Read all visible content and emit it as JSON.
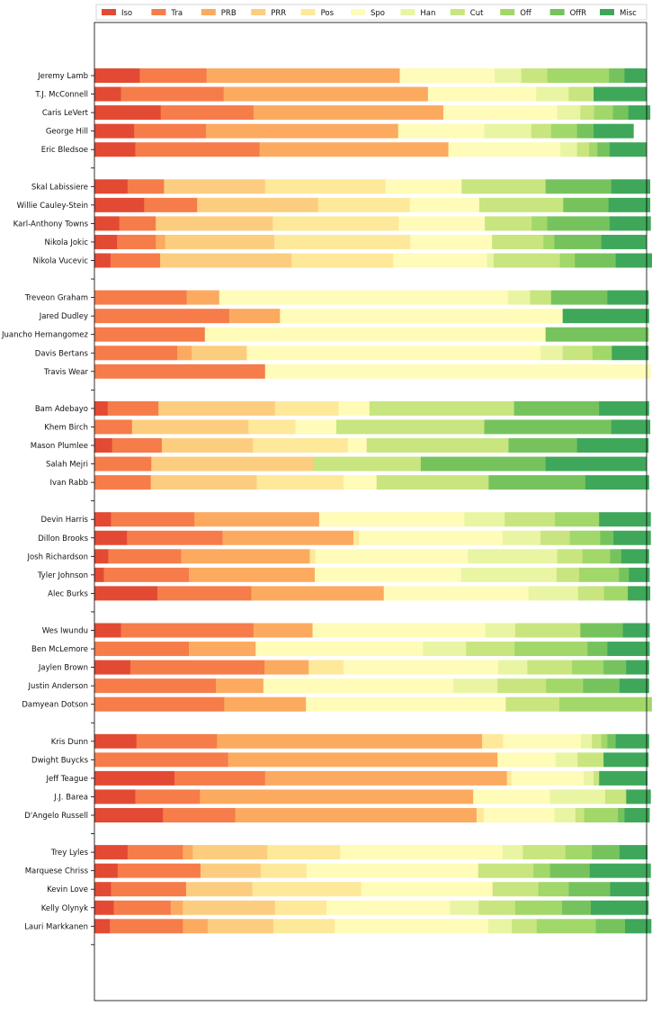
{
  "chart_data": {
    "type": "bar",
    "orientation": "horizontal",
    "stacked": true,
    "normalized": true,
    "xlim": [
      0,
      1
    ],
    "grid": false,
    "legend_placement": "top",
    "title": "",
    "xlabel": "",
    "ylabel": "",
    "series": [
      {
        "name": "Iso",
        "color": "#e34a33"
      },
      {
        "name": "Tra",
        "color": "#f67c4a"
      },
      {
        "name": "PRB",
        "color": "#fcaa5f"
      },
      {
        "name": "PRR",
        "color": "#fdcd7f"
      },
      {
        "name": "Pos",
        "color": "#fee89a"
      },
      {
        "name": "Spo",
        "color": "#fffbb9"
      },
      {
        "name": "Han",
        "color": "#e9f5a3"
      },
      {
        "name": "Cut",
        "color": "#c8e57f"
      },
      {
        "name": "Off",
        "color": "#a2d76a"
      },
      {
        "name": "OffR",
        "color": "#76c35e"
      },
      {
        "name": "Misc",
        "color": "#3fa75a"
      }
    ],
    "groups": [
      {
        "players": [
          {
            "name": "Jeremy Lamb",
            "values": [
              0.082,
              0.121,
              0.35,
              0,
              0,
              0.172,
              0.048,
              0.047,
              0.112,
              0.028,
              0.04
            ]
          },
          {
            "name": "T.J. McConnell",
            "values": [
              0.048,
              0.186,
              0.37,
              0,
              0,
              0.196,
              0.059,
              0.045,
              0,
              0,
              0.096
            ]
          },
          {
            "name": "Caris LeVert",
            "values": [
              0.12,
              0.168,
              0.344,
              0,
              0,
              0.206,
              0.042,
              0.025,
              0.034,
              0.028,
              0.039
            ]
          },
          {
            "name": "George Hill",
            "values": [
              0.072,
              0.13,
              0.348,
              0,
              0,
              0.156,
              0.085,
              0.036,
              0.047,
              0.03,
              0.072
            ]
          },
          {
            "name": "Eric Bledsoe",
            "values": [
              0.074,
              0.225,
              0.342,
              0,
              0,
              0.203,
              0.03,
              0.022,
              0.015,
              0.022,
              0.067
            ]
          }
        ]
      },
      {
        "players": [
          {
            "name": "Skal Labissiere",
            "values": [
              0.06,
              0.066,
              0,
              0.183,
              0.218,
              0.138,
              0,
              0.152,
              0,
              0.119,
              0.07
            ]
          },
          {
            "name": "Willie Cauley-Stein",
            "values": [
              0.09,
              0.096,
              0,
              0.219,
              0.166,
              0.126,
              0,
              0.152,
              0,
              0.082,
              0.075
            ]
          },
          {
            "name": "Karl-Anthony Towns",
            "values": [
              0.045,
              0.066,
              0,
              0.212,
              0.228,
              0.156,
              0,
              0.085,
              0.028,
              0.113,
              0.074
            ]
          },
          {
            "name": "Nikola Jokic",
            "values": [
              0.041,
              0.07,
              0.017,
              0.198,
              0.246,
              0.148,
              0,
              0.093,
              0.02,
              0.085,
              0.082
            ]
          },
          {
            "name": "Nikola Vucevic",
            "values": [
              0.029,
              0.09,
              0,
              0.238,
              0.184,
              0.17,
              0.012,
              0.12,
              0.027,
              0.074,
              0.066
            ]
          }
        ]
      },
      {
        "players": [
          {
            "name": "Treveon Graham",
            "values": [
              0,
              0.167,
              0.059,
              0,
              0,
              0.523,
              0.04,
              0.038,
              0,
              0.102,
              0.074
            ]
          },
          {
            "name": "Jared Dudley",
            "values": [
              0,
              0.244,
              0.092,
              0,
              0,
              0.512,
              0,
              0,
              0,
              0,
              0.156
            ]
          },
          {
            "name": "Juancho Hernangomez",
            "values": [
              0,
              0.2,
              0,
              0,
              0,
              0.617,
              0,
              0,
              0,
              0.186,
              0
            ]
          },
          {
            "name": "Davis Bertans",
            "values": [
              0,
              0.15,
              0.026,
              0.1,
              0,
              0.532,
              0.04,
              0.054,
              0.035,
              0,
              0.066
            ]
          },
          {
            "name": "Travis Wear",
            "values": [
              0,
              0.309,
              0,
              0,
              0,
              0.698,
              0,
              0,
              0,
              0,
              0
            ]
          }
        ]
      },
      {
        "players": [
          {
            "name": "Bam Adebayo",
            "values": [
              0.024,
              0.092,
              0,
              0.211,
              0.115,
              0.056,
              0,
              0.262,
              0,
              0.154,
              0.09
            ]
          },
          {
            "name": "Khem Birch",
            "values": [
              0,
              0.068,
              0,
              0.211,
              0.085,
              0.074,
              0,
              0.268,
              0,
              0.23,
              0.07
            ]
          },
          {
            "name": "Mason Plumlee",
            "values": [
              0.032,
              0.09,
              0,
              0.165,
              0.172,
              0.034,
              0,
              0.257,
              0,
              0.124,
              0.129
            ]
          },
          {
            "name": "Salah Mejri",
            "values": [
              0,
              0.103,
              0,
              0.293,
              0,
              0,
              0,
              0.195,
              0,
              0.226,
              0.183
            ]
          },
          {
            "name": "Ivan Rabb",
            "values": [
              0,
              0.102,
              0,
              0.192,
              0.157,
              0.06,
              0,
              0.203,
              0,
              0.175,
              0.115
            ]
          }
        ]
      },
      {
        "players": [
          {
            "name": "Devin Harris",
            "values": [
              0.03,
              0.151,
              0.226,
              0,
              0,
              0.263,
              0.073,
              0.091,
              0.08,
              0,
              0.093
            ]
          },
          {
            "name": "Dillon Brooks",
            "values": [
              0.059,
              0.173,
              0.237,
              0,
              0.01,
              0.26,
              0.069,
              0.053,
              0.055,
              0.024,
              0.067
            ]
          },
          {
            "name": "Josh Richardson",
            "values": [
              0.025,
              0.132,
              0.233,
              0,
              0.01,
              0.276,
              0.162,
              0.046,
              0.05,
              0.02,
              0.05
            ]
          },
          {
            "name": "Tyler Johnson",
            "values": [
              0.017,
              0.154,
              0.228,
              0,
              0,
              0.265,
              0.173,
              0.041,
              0.072,
              0.018,
              0.037
            ]
          },
          {
            "name": "Alec Burks",
            "values": [
              0.114,
              0.17,
              0.24,
              0,
              0,
              0.262,
              0.09,
              0.047,
              0.043,
              0,
              0.04
            ]
          }
        ]
      },
      {
        "players": [
          {
            "name": "Wes Iwundu",
            "values": [
              0.048,
              0.24,
              0.107,
              0,
              0,
              0.313,
              0.054,
              0.118,
              0,
              0.077,
              0.048
            ]
          },
          {
            "name": "Ben McLemore",
            "values": [
              0,
              0.171,
              0.121,
              0,
              0,
              0.303,
              0.078,
              0.088,
              0.132,
              0.036,
              0.076
            ]
          },
          {
            "name": "Jaylen Brown",
            "values": [
              0.065,
              0.243,
              0.08,
              0,
              0.063,
              0.28,
              0.053,
              0.081,
              0.057,
              0.041,
              0.041
            ]
          },
          {
            "name": "Justin Anderson",
            "values": [
              0,
              0.22,
              0.086,
              0,
              0,
              0.344,
              0.08,
              0.088,
              0.067,
              0.066,
              0.053
            ]
          },
          {
            "name": "Damyean Dotson",
            "values": [
              0,
              0.235,
              0.148,
              0,
              0,
              0.362,
              0,
              0.097,
              0.167,
              0,
              0
            ]
          }
        ]
      },
      {
        "players": [
          {
            "name": "Kris Dunn",
            "values": [
              0.076,
              0.146,
              0.48,
              0,
              0.038,
              0.141,
              0.02,
              0.017,
              0.011,
              0.015,
              0.06
            ]
          },
          {
            "name": "Dwight Buycks",
            "values": [
              0,
              0.242,
              0.488,
              0,
              0,
              0.105,
              0.04,
              0.047,
              0,
              0,
              0.081
            ]
          },
          {
            "name": "Jeff Teague",
            "values": [
              0.145,
              0.164,
              0.438,
              0,
              0.008,
              0.131,
              0.018,
              0.01,
              0,
              0,
              0.087
            ]
          },
          {
            "name": "J.J. Barea",
            "values": [
              0.074,
              0.117,
              0.495,
              0,
              0,
              0.139,
              0.1,
              0.038,
              0,
              0,
              0.044
            ]
          },
          {
            "name": "D'Angelo Russell",
            "values": [
              0.124,
              0.131,
              0.437,
              0,
              0.013,
              0.128,
              0.038,
              0.016,
              0.061,
              0.012,
              0.045
            ]
          }
        ]
      },
      {
        "players": [
          {
            "name": "Trey Lyles",
            "values": [
              0.06,
              0.1,
              0.018,
              0.135,
              0.132,
              0.294,
              0.037,
              0.077,
              0.048,
              0.05,
              0.05
            ]
          },
          {
            "name": "Marquese Chriss",
            "values": [
              0.042,
              0.15,
              0,
              0.109,
              0.083,
              0.311,
              0,
              0.1,
              0.03,
              0.072,
              0.11
            ]
          },
          {
            "name": "Kevin Love",
            "values": [
              0.03,
              0.136,
              0,
              0.12,
              0.197,
              0.238,
              0,
              0.083,
              0.055,
              0.075,
              0.07
            ]
          },
          {
            "name": "Kelly Olynyk",
            "values": [
              0.035,
              0.103,
              0.022,
              0.167,
              0.093,
              0.224,
              0.052,
              0.066,
              0.085,
              0.052,
              0.104
            ]
          },
          {
            "name": "Lauri Markkanen",
            "values": [
              0.028,
              0.132,
              0.045,
              0.119,
              0.111,
              0.278,
              0.043,
              0.045,
              0.107,
              0.053,
              0.047
            ]
          }
        ]
      }
    ]
  }
}
